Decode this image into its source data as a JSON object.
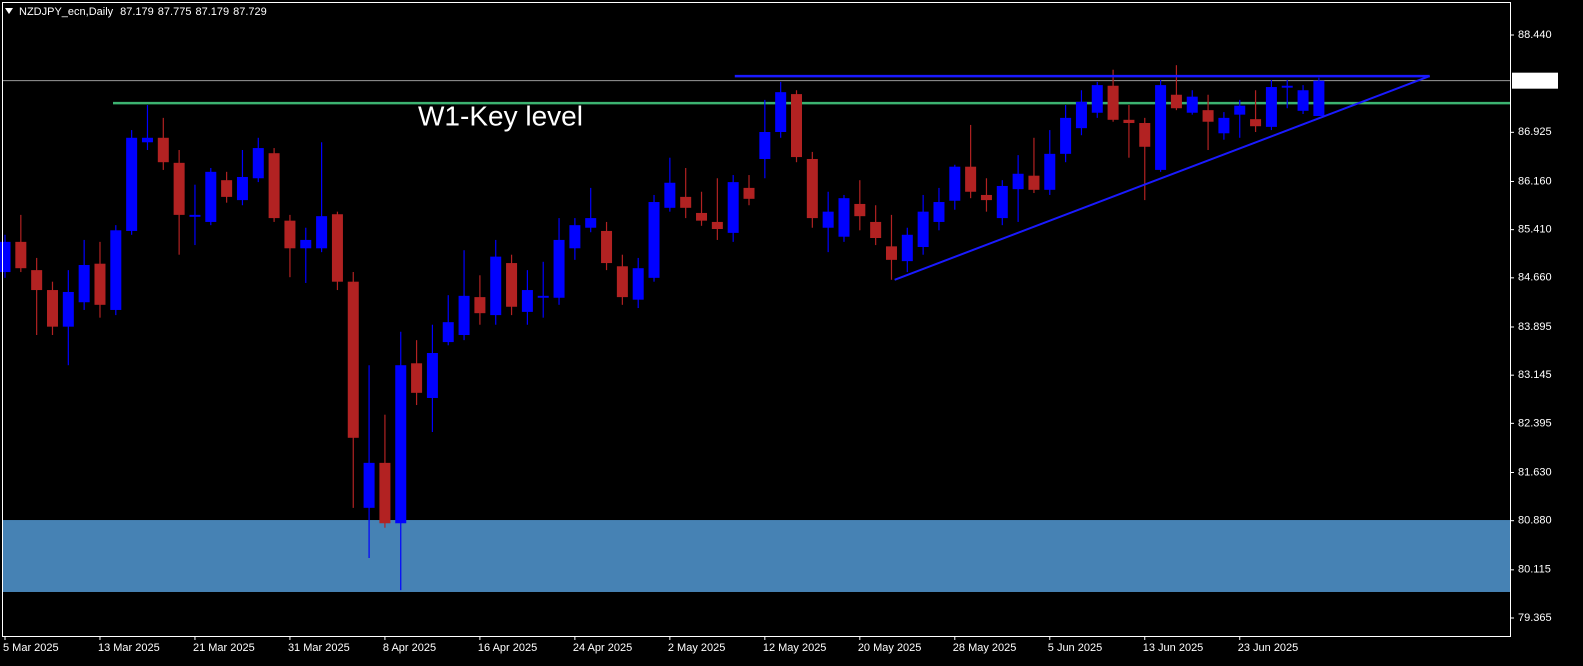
{
  "chart_data": {
    "type": "candlestick",
    "title": "NZDJPY_ecn,Daily",
    "categories": [
      "5 Mar 2025",
      null,
      null,
      null,
      null,
      null,
      "13 Mar 2025",
      null,
      null,
      null,
      null,
      null,
      "21 Mar 2025",
      null,
      null,
      null,
      null,
      null,
      "31 Mar 2025",
      null,
      null,
      null,
      null,
      null,
      "8 Apr 2025",
      null,
      null,
      null,
      null,
      null,
      "16 Apr 2025",
      null,
      null,
      null,
      null,
      null,
      "24 Apr 2025",
      null,
      null,
      null,
      null,
      null,
      "2 May 2025",
      null,
      null,
      null,
      null,
      null,
      "12 May 2025",
      null,
      null,
      null,
      null,
      null,
      "20 May 2025",
      null,
      null,
      null,
      null,
      null,
      "28 May 2025",
      null,
      null,
      null,
      null,
      null,
      "5 Jun 2025",
      null,
      null,
      null,
      null,
      null,
      "13 Jun 2025",
      null,
      null,
      null,
      null,
      null,
      "23 Jun 2025",
      null,
      null,
      null,
      null,
      null
    ],
    "open": [
      84.75,
      85.22,
      84.78,
      84.47,
      83.9,
      84.28,
      84.88,
      84.16,
      85.39,
      86.77,
      86.84,
      86.45,
      85.61,
      85.53,
      86.18,
      85.87,
      86.21,
      86.6,
      85.55,
      85.12,
      85.12,
      85.65,
      84.6,
      81.08,
      81.78,
      80.84,
      83.33,
      82.79,
      83.66,
      83.77,
      84.36,
      84.08,
      84.89,
      84.13,
      84.35,
      84.35,
      85.12,
      85.44,
      85.39,
      84.84,
      84.32,
      84.66,
      85.75,
      85.92,
      85.67,
      85.53,
      85.36,
      86.06,
      86.51,
      86.93,
      87.52,
      86.51,
      85.44,
      85.3,
      85.81,
      85.53,
      85.15,
      84.92,
      85.14,
      85.53,
      85.86,
      86.39,
      85.95,
      85.59,
      86.04,
      86.25,
      86.03,
      86.59,
      86.99,
      87.23,
      87.65,
      87.12,
      87.07,
      86.34,
      87.51,
      87.23,
      87.27,
      86.91,
      87.2,
      87.13,
      87.01,
      87.62,
      87.26,
      87.179
    ],
    "high": [
      85.33,
      85.64,
      84.97,
      84.6,
      84.78,
      85.25,
      85.22,
      85.48,
      86.96,
      87.35,
      87.15,
      86.65,
      86.11,
      86.37,
      86.31,
      86.65,
      86.84,
      86.68,
      85.64,
      85.44,
      86.77,
      85.69,
      84.75,
      83.3,
      82.53,
      83.82,
      83.69,
      83.93,
      84.39,
      85.09,
      84.7,
      85.25,
      85.02,
      84.78,
      84.91,
      85.59,
      85.59,
      86.06,
      85.53,
      85.02,
      84.97,
      85.95,
      86.53,
      86.37,
      86.0,
      86.21,
      86.26,
      86.26,
      87.43,
      87.71,
      87.58,
      86.62,
      86.0,
      85.95,
      86.18,
      85.79,
      85.64,
      85.44,
      85.95,
      86.06,
      86.42,
      87.04,
      86.21,
      86.18,
      86.57,
      86.84,
      86.96,
      87.35,
      87.58,
      87.71,
      87.9,
      87.35,
      87.15,
      87.74,
      87.97,
      87.58,
      87.51,
      87.24,
      87.43,
      87.58,
      87.74,
      87.74,
      87.66,
      87.775
    ],
    "low": [
      84.66,
      84.75,
      83.77,
      83.77,
      83.3,
      84.16,
      84.04,
      84.08,
      85.33,
      86.65,
      86.34,
      85.02,
      85.17,
      85.48,
      85.83,
      85.79,
      86.15,
      85.53,
      84.67,
      84.58,
      85.06,
      84.47,
      81.08,
      80.3,
      80.77,
      79.8,
      82.68,
      82.26,
      83.61,
      83.69,
      83.93,
      83.93,
      84.08,
      83.93,
      84.04,
      84.24,
      84.94,
      85.37,
      84.78,
      84.24,
      84.19,
      84.6,
      85.69,
      85.59,
      85.47,
      85.25,
      85.22,
      85.79,
      86.21,
      86.84,
      86.46,
      85.44,
      85.06,
      85.22,
      85.4,
      85.17,
      84.63,
      84.75,
      85.02,
      85.4,
      85.72,
      85.9,
      85.69,
      85.48,
      85.53,
      85.98,
      85.95,
      86.46,
      86.88,
      87.15,
      87.09,
      86.53,
      85.87,
      86.31,
      87.27,
      87.2,
      86.65,
      86.81,
      86.84,
      86.93,
      86.96,
      87.3,
      87.21,
      87.179
    ],
    "close": [
      85.22,
      84.81,
      84.47,
      83.9,
      84.44,
      84.86,
      84.24,
      85.4,
      86.84,
      86.84,
      86.46,
      85.64,
      85.64,
      86.31,
      85.92,
      86.23,
      86.68,
      85.59,
      85.12,
      85.25,
      85.62,
      84.6,
      82.17,
      81.78,
      80.84,
      83.3,
      82.87,
      83.49,
      83.97,
      84.38,
      84.11,
      84.99,
      84.21,
      84.47,
      84.38,
      85.25,
      85.48,
      85.59,
      84.89,
      84.36,
      84.81,
      85.84,
      86.14,
      85.75,
      85.55,
      85.42,
      86.15,
      85.89,
      86.93,
      87.55,
      86.54,
      85.59,
      85.69,
      85.9,
      85.62,
      85.28,
      84.94,
      85.33,
      85.69,
      85.84,
      86.39,
      86.0,
      85.87,
      86.09,
      86.28,
      86.03,
      86.59,
      87.15,
      87.4,
      87.66,
      87.12,
      87.07,
      86.7,
      87.66,
      87.3,
      87.48,
      87.09,
      87.15,
      87.34,
      87.02,
      87.63,
      87.65,
      87.58,
      87.729
    ],
    "up_color": "#0000ff",
    "down_color": "#b22222",
    "ylim": [
      79.085,
      88.938
    ],
    "yticks": [
      {
        "value": 88.44,
        "label": "88.440"
      },
      86.925,
      {
        "value": 86.16,
        "label": "86.160"
      },
      {
        "value": 85.41,
        "label": "85.410"
      },
      {
        "value": 84.66,
        "label": "84.660"
      },
      83.895,
      83.145,
      82.395,
      {
        "value": 81.63,
        "label": "81.630"
      },
      {
        "value": 80.88,
        "label": "80.880"
      },
      80.115,
      79.365
    ],
    "current_price": 87.729,
    "key_level": {
      "label": "W1-Key level",
      "value": 87.38,
      "color": "#3cb371"
    },
    "resistance": {
      "value": 87.8,
      "color": "#1a1aff"
    },
    "trendline": {
      "values": [
        84.63,
        87.8
      ],
      "color": "#1a1aff"
    },
    "zone": {
      "values": [
        79.77,
        80.89
      ],
      "color": "#4682b4"
    }
  }
}
